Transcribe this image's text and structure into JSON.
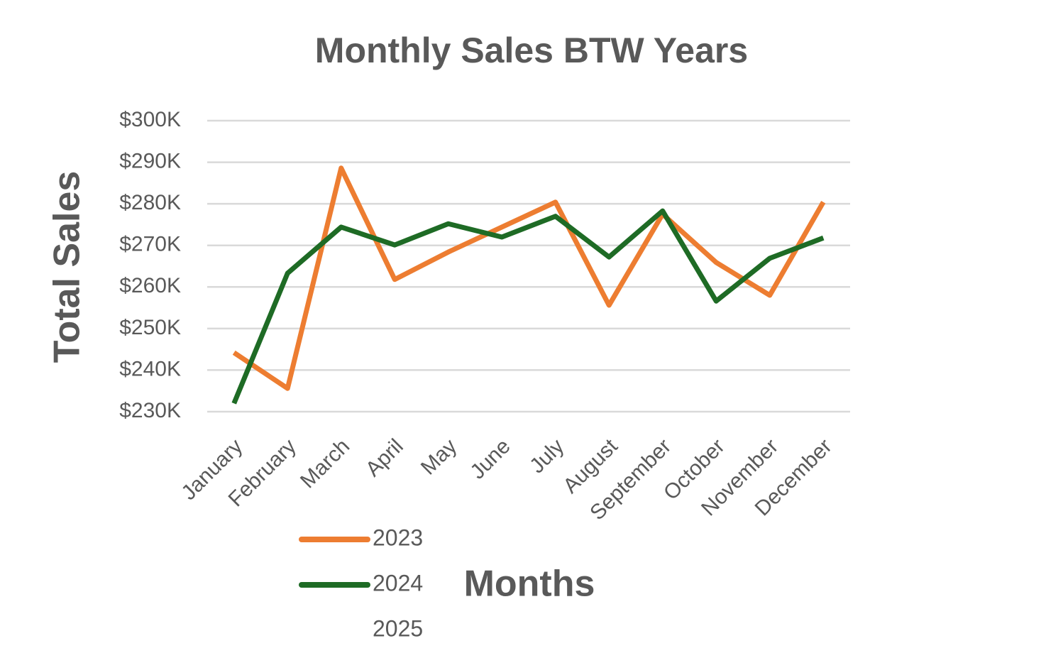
{
  "chart_data": {
    "type": "line",
    "title": "Monthly Sales  BTW Years",
    "x_label": "Months",
    "y_label": "Total Sales",
    "categories": [
      "January",
      "February",
      "March",
      "April",
      "May",
      "June",
      "July",
      "August",
      "September",
      "October",
      "November",
      "December"
    ],
    "series": [
      {
        "name": "2023",
        "color": "#ed7d31",
        "values": [
          244200,
          235600,
          288600,
          261800,
          268400,
          274400,
          280400,
          255600,
          277500,
          265900,
          258000,
          280400
        ]
      },
      {
        "name": "2024",
        "color": "#1e6b25",
        "values": [
          232000,
          263300,
          274400,
          270100,
          275200,
          272000,
          277000,
          267200,
          278300,
          256600,
          266900,
          271800
        ]
      },
      {
        "name": "2025",
        "values": [
          null,
          null,
          null,
          null,
          null,
          null,
          null,
          null,
          null,
          null,
          null,
          null
        ]
      }
    ],
    "ylim": [
      230000,
      300000
    ],
    "yticks": [
      {
        "value": 230000,
        "label": "$230K"
      },
      {
        "value": 240000,
        "label": "$240K"
      },
      {
        "value": 250000,
        "label": "$250K"
      },
      {
        "value": 260000,
        "label": "$260K"
      },
      {
        "value": 270000,
        "label": "$270K"
      },
      {
        "value": 280000,
        "label": "$280K"
      },
      {
        "value": 290000,
        "label": "$290K"
      },
      {
        "value": 300000,
        "label": "$300K"
      }
    ],
    "grid": true,
    "legend": "bottom-left"
  }
}
